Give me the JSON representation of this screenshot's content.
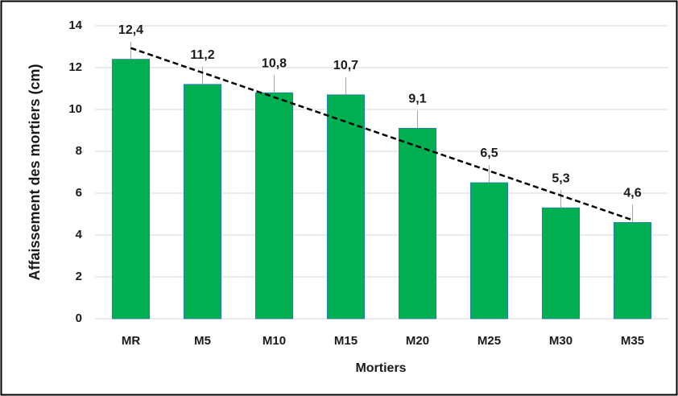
{
  "chart_data": {
    "type": "bar",
    "categories": [
      "MR",
      "M5",
      "M10",
      "M15",
      "M20",
      "M25",
      "M30",
      "M35"
    ],
    "values": [
      12.4,
      11.2,
      10.8,
      10.7,
      9.1,
      6.5,
      5.3,
      4.6
    ],
    "value_labels": [
      "12,4",
      "11,2",
      "10,8",
      "10,7",
      "9,1",
      "6,5",
      "5,3",
      "4,6"
    ],
    "color": "#00b050",
    "xlabel": "Mortiers",
    "ylabel": "Affaissement des mortiers (cm)",
    "ylim": [
      0,
      14
    ],
    "yticks": [
      0,
      2,
      4,
      6,
      8,
      10,
      12,
      14
    ],
    "grid": true,
    "trendline": "linear"
  }
}
